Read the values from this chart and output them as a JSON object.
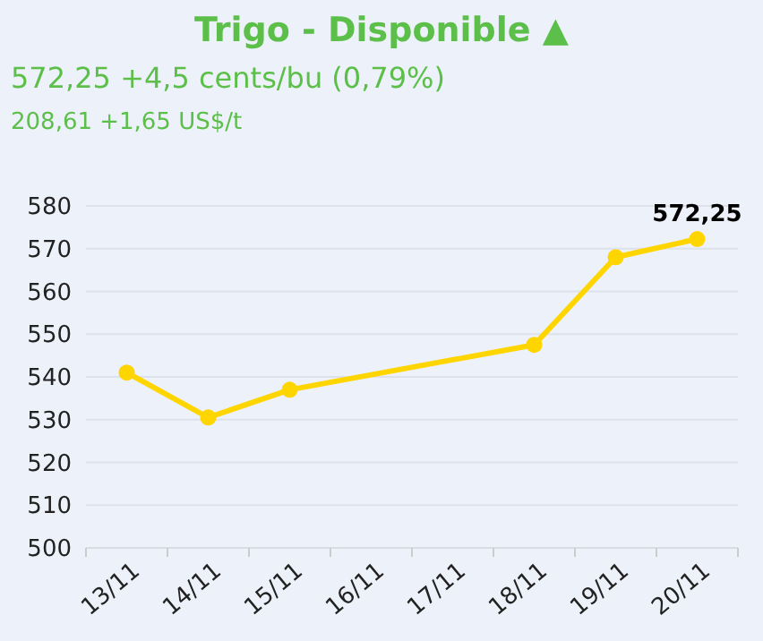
{
  "chart_data": {
    "type": "line",
    "title": "Trigo - Disponible ▲",
    "subtitle": "572,25 +4,5 cents/bu (0,79%)",
    "annotations": [
      "208,61 +1,65 US$/t"
    ],
    "categories": [
      "13/11",
      "14/11",
      "15/11",
      "16/11",
      "17/11",
      "18/11",
      "19/11",
      "20/11"
    ],
    "series": [
      {
        "color": "#ffd500",
        "values": [
          541,
          530.5,
          537,
          null,
          null,
          547.5,
          568,
          572.25
        ],
        "value_labels": [
          null,
          null,
          null,
          null,
          null,
          null,
          null,
          "572,25"
        ]
      }
    ],
    "ylim": [
      500,
      580
    ],
    "yticks": [
      500,
      510,
      520,
      530,
      540,
      550,
      560,
      570,
      580
    ],
    "grid": "y",
    "marker": "circle",
    "line_style": "solid"
  }
}
